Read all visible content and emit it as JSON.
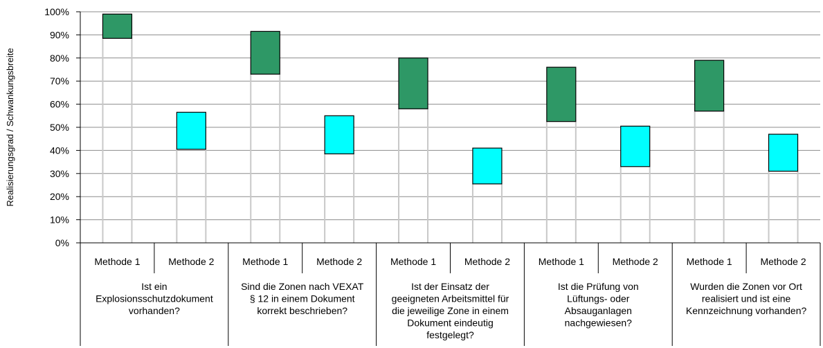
{
  "chart_data": {
    "type": "bar",
    "subtype": "floating-range",
    "ylabel": "Realisierungsgrad / Schwankungsbreite",
    "ylim": [
      0,
      100
    ],
    "yticks": [
      "0%",
      "10%",
      "20%",
      "30%",
      "40%",
      "50%",
      "60%",
      "70%",
      "80%",
      "90%",
      "100%"
    ],
    "grid": true,
    "colors": {
      "methode_1": "#2E9866",
      "methode_2": "#00FFFF"
    },
    "groups": [
      {
        "question_lines": [
          "Ist ein",
          "Explosionsschutzdokument",
          "vorhanden?"
        ],
        "methods": [
          {
            "label": "Methode 1",
            "low": 88.5,
            "high": 99
          },
          {
            "label": "Methode 2",
            "low": 40.5,
            "high": 56.5
          }
        ]
      },
      {
        "question_lines": [
          "Sind die Zonen nach VEXAT",
          "§ 12 in einem Dokument",
          "korrekt beschrieben?"
        ],
        "methods": [
          {
            "label": "Methode 1",
            "low": 73,
            "high": 91.5
          },
          {
            "label": "Methode 2",
            "low": 38.5,
            "high": 55
          }
        ]
      },
      {
        "question_lines": [
          "Ist der Einsatz der",
          "geeigneten Arbeitsmittel für",
          "die jeweilige Zone in einem",
          "Dokument eindeutig",
          "festgelegt?"
        ],
        "methods": [
          {
            "label": "Methode 1",
            "low": 58,
            "high": 80
          },
          {
            "label": "Methode 2",
            "low": 25.5,
            "high": 41
          }
        ]
      },
      {
        "question_lines": [
          "Ist die Prüfung von",
          "Lüftungs- oder",
          "Absauganlagen",
          "nachgewiesen?"
        ],
        "methods": [
          {
            "label": "Methode 1",
            "low": 52.5,
            "high": 76
          },
          {
            "label": "Methode 2",
            "low": 33,
            "high": 50.5
          }
        ]
      },
      {
        "question_lines": [
          "Wurden die Zonen vor Ort",
          "realisiert und ist eine",
          "Kennzeichnung vorhanden?"
        ],
        "methods": [
          {
            "label": "Methode 1",
            "low": 57,
            "high": 79
          },
          {
            "label": "Methode 2",
            "low": 31,
            "high": 47
          }
        ]
      }
    ]
  }
}
